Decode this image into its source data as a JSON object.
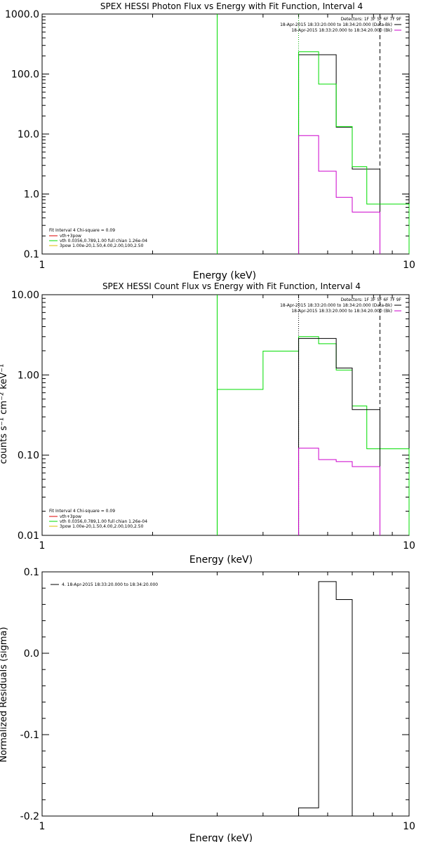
{
  "colors": {
    "background": "#ffffff",
    "axes": "#000000",
    "total_fit": "#000000",
    "data": "#00dd00",
    "background_spectrum": "#cc00cc",
    "vth_component": "#00dd00",
    "vth_3pow_component": "#dd0000",
    "3pow_component": "#ddbb00"
  },
  "chart_data": [
    {
      "type": "line",
      "title": "SPEX HESSI Photon Flux vs Energy with Fit Function, Interval 4",
      "xlabel": "Energy (keV)",
      "ylabel": "",
      "xscale": "log",
      "yscale": "log",
      "xlim": [
        1,
        10
      ],
      "ylim": [
        0.1,
        1000
      ],
      "xticks": [
        {
          "value": 1,
          "label": "1"
        },
        {
          "value": 10,
          "label": "10"
        }
      ],
      "yticks": [
        {
          "value": 0.1,
          "label": "0.1"
        },
        {
          "value": 1,
          "label": "1.0"
        },
        {
          "value": 10,
          "label": "10.0"
        },
        {
          "value": 100,
          "label": "100.0"
        },
        {
          "value": 1000,
          "label": "1000.0"
        }
      ],
      "header": [
        "Detectors: 1F 3F 5F 6F 7F 9F",
        "18-Apr-2015 18:33:20.000 to 18:34:20.000 (Data-Bk)",
        "18-Apr-2015 18:33:20.000 to 18:34:20.000 (Bk)"
      ],
      "fit_legend": [
        "Fit Interval  4    Chi-square = 0.09",
        "vth+3pow",
        "vth 0.0356,0.789,1.00  full chian 1.26e-04",
        "3pow 1.00e-20,1.50,4.00,2.00,100,2.50"
      ],
      "series": [
        {
          "kind": "step",
          "color": "#000000",
          "edges": [
            5.0,
            5.67,
            6.33,
            7.0,
            7.67,
            8.33
          ],
          "values": [
            210,
            210,
            13.0,
            2.6,
            2.6
          ]
        },
        {
          "kind": "step",
          "color": "#00dd00",
          "edges": [
            5.0,
            5.67,
            6.33,
            7.0,
            7.67,
            8.33,
            10.0
          ],
          "values": [
            235,
            68,
            13.3,
            2.85,
            0.68,
            0.68
          ]
        },
        {
          "kind": "step",
          "color": "#cc00cc",
          "edges": [
            5.0,
            5.67,
            6.33,
            7.0,
            7.67,
            8.33
          ],
          "values": [
            9.4,
            2.4,
            0.88,
            0.5,
            0.5
          ]
        }
      ],
      "vlines": [
        {
          "x": 3.0,
          "color": "#00dd00",
          "style": "solid"
        },
        {
          "x": 5.0,
          "color": "#00aa00",
          "style": "dotted"
        },
        {
          "x": 8.33,
          "color": "#000000",
          "style": "dashed"
        }
      ]
    },
    {
      "type": "line",
      "title": "SPEX HESSI Count Flux vs Energy with Fit Function, Interval 4",
      "xlabel": "Energy (keV)",
      "ylabel": "counts s⁻¹ cm⁻² keV⁻¹",
      "xscale": "log",
      "yscale": "log",
      "xlim": [
        1,
        10
      ],
      "ylim": [
        0.01,
        10
      ],
      "xticks": [
        {
          "value": 1,
          "label": "1"
        },
        {
          "value": 10,
          "label": "10"
        }
      ],
      "yticks": [
        {
          "value": 0.01,
          "label": "0.01"
        },
        {
          "value": 0.1,
          "label": "0.10"
        },
        {
          "value": 1,
          "label": "1.00"
        },
        {
          "value": 10,
          "label": "10.00"
        }
      ],
      "header": [
        "Detectors: 1F 3F 5F 6F 7F 9F",
        "18-Apr-2015 18:33:20.000 to 18:34:20.000 (Data-Bk)",
        "18-Apr-2015 18:33:20.000 to 18:34:20.000 (Bk)"
      ],
      "fit_legend": [
        "Fit Interval  4    Chi-square = 0.09",
        "vth+3pow",
        "vth 0.0356,0.789,1.00  full chian 1.26e-04",
        "3pow 1.00e-20,1.50,4.00,2.00,100,2.50"
      ],
      "series": [
        {
          "kind": "step",
          "color": "#00dd00",
          "edges": [
            3.0,
            4.0,
            5.0,
            5.67,
            6.33,
            7.0,
            7.67,
            8.33,
            10.0
          ],
          "values": [
            0.66,
            1.98,
            3.0,
            2.45,
            1.15,
            0.41,
            0.12,
            0.12
          ]
        },
        {
          "kind": "step",
          "color": "#000000",
          "edges": [
            5.0,
            5.67,
            6.33,
            7.0,
            7.67,
            8.33
          ],
          "values": [
            2.85,
            2.85,
            1.22,
            0.37,
            0.37
          ]
        },
        {
          "kind": "step",
          "color": "#cc00cc",
          "edges": [
            5.0,
            5.67,
            6.33,
            7.0,
            7.67,
            8.33
          ],
          "values": [
            0.122,
            0.088,
            0.083,
            0.072,
            0.072
          ]
        }
      ],
      "vlines": [
        {
          "x": 3.0,
          "color": "#00dd00",
          "style": "solid"
        },
        {
          "x": 5.0,
          "color": "#000000",
          "style": "dotted"
        },
        {
          "x": 8.33,
          "color": "#000000",
          "style": "dashed"
        }
      ]
    },
    {
      "type": "line",
      "title": "",
      "xlabel": "Energy (keV)",
      "ylabel": "Normalized Residuals (sigma)",
      "xscale": "log",
      "yscale": "linear",
      "xlim": [
        1,
        10
      ],
      "ylim": [
        -0.2,
        0.1
      ],
      "xticks": [
        {
          "value": 1,
          "label": "1"
        },
        {
          "value": 10,
          "label": "10"
        }
      ],
      "yticks": [
        {
          "value": -0.2,
          "label": "-0.2"
        },
        {
          "value": -0.1,
          "label": "-0.1"
        },
        {
          "value": 0.0,
          "label": "0.0"
        },
        {
          "value": 0.1,
          "label": "0.1"
        }
      ],
      "legend": "4. 18-Apr-2015 18:33:20.000 to 18:34:20.000",
      "series": [
        {
          "kind": "step",
          "color": "#000000",
          "edges": [
            5.0,
            5.67,
            6.33,
            7.0,
            7.67
          ],
          "values": [
            -0.19,
            0.088,
            0.066,
            -0.2
          ]
        }
      ]
    }
  ]
}
